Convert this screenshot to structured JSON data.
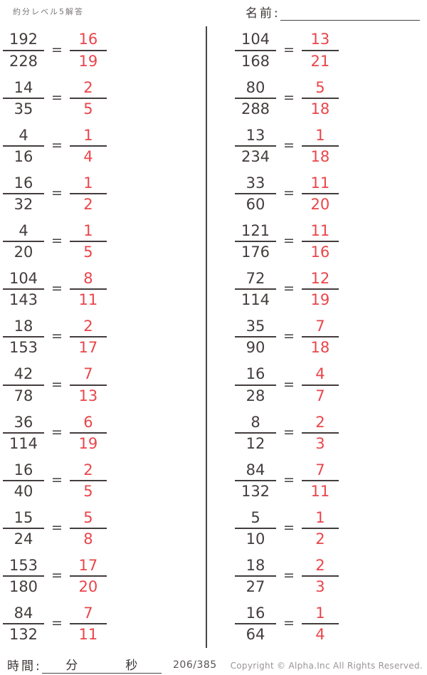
{
  "header": {
    "title": "約分レベル5解答",
    "name_label": "名前:"
  },
  "equals_sign": "=",
  "columns": {
    "left": [
      {
        "num": "192",
        "den": "228",
        "ans_num": "16",
        "ans_den": "19"
      },
      {
        "num": "14",
        "den": "35",
        "ans_num": "2",
        "ans_den": "5"
      },
      {
        "num": "4",
        "den": "16",
        "ans_num": "1",
        "ans_den": "4"
      },
      {
        "num": "16",
        "den": "32",
        "ans_num": "1",
        "ans_den": "2"
      },
      {
        "num": "4",
        "den": "20",
        "ans_num": "1",
        "ans_den": "5"
      },
      {
        "num": "104",
        "den": "143",
        "ans_num": "8",
        "ans_den": "11"
      },
      {
        "num": "18",
        "den": "153",
        "ans_num": "2",
        "ans_den": "17"
      },
      {
        "num": "42",
        "den": "78",
        "ans_num": "7",
        "ans_den": "13"
      },
      {
        "num": "36",
        "den": "114",
        "ans_num": "6",
        "ans_den": "19"
      },
      {
        "num": "16",
        "den": "40",
        "ans_num": "2",
        "ans_den": "5"
      },
      {
        "num": "15",
        "den": "24",
        "ans_num": "5",
        "ans_den": "8"
      },
      {
        "num": "153",
        "den": "180",
        "ans_num": "17",
        "ans_den": "20"
      },
      {
        "num": "84",
        "den": "132",
        "ans_num": "7",
        "ans_den": "11"
      }
    ],
    "right": [
      {
        "num": "104",
        "den": "168",
        "ans_num": "13",
        "ans_den": "21"
      },
      {
        "num": "80",
        "den": "288",
        "ans_num": "5",
        "ans_den": "18"
      },
      {
        "num": "13",
        "den": "234",
        "ans_num": "1",
        "ans_den": "18"
      },
      {
        "num": "33",
        "den": "60",
        "ans_num": "11",
        "ans_den": "20"
      },
      {
        "num": "121",
        "den": "176",
        "ans_num": "11",
        "ans_den": "16"
      },
      {
        "num": "72",
        "den": "114",
        "ans_num": "12",
        "ans_den": "19"
      },
      {
        "num": "35",
        "den": "90",
        "ans_num": "7",
        "ans_den": "18"
      },
      {
        "num": "16",
        "den": "28",
        "ans_num": "4",
        "ans_den": "7"
      },
      {
        "num": "8",
        "den": "12",
        "ans_num": "2",
        "ans_den": "3"
      },
      {
        "num": "84",
        "den": "132",
        "ans_num": "7",
        "ans_den": "11"
      },
      {
        "num": "5",
        "den": "10",
        "ans_num": "1",
        "ans_den": "2"
      },
      {
        "num": "18",
        "den": "27",
        "ans_num": "2",
        "ans_den": "3"
      },
      {
        "num": "16",
        "den": "64",
        "ans_num": "1",
        "ans_den": "4"
      }
    ]
  },
  "footer": {
    "time_label": "時間:",
    "minutes_label": "分",
    "seconds_label": "秒",
    "page": "206/385",
    "copyright": "Copyright ©  Alpha.Inc All Rights Reserved."
  },
  "colors": {
    "answer_red": "#ea454a",
    "ink_dark": "#443d3d",
    "muted_gray": "#9a9595"
  }
}
